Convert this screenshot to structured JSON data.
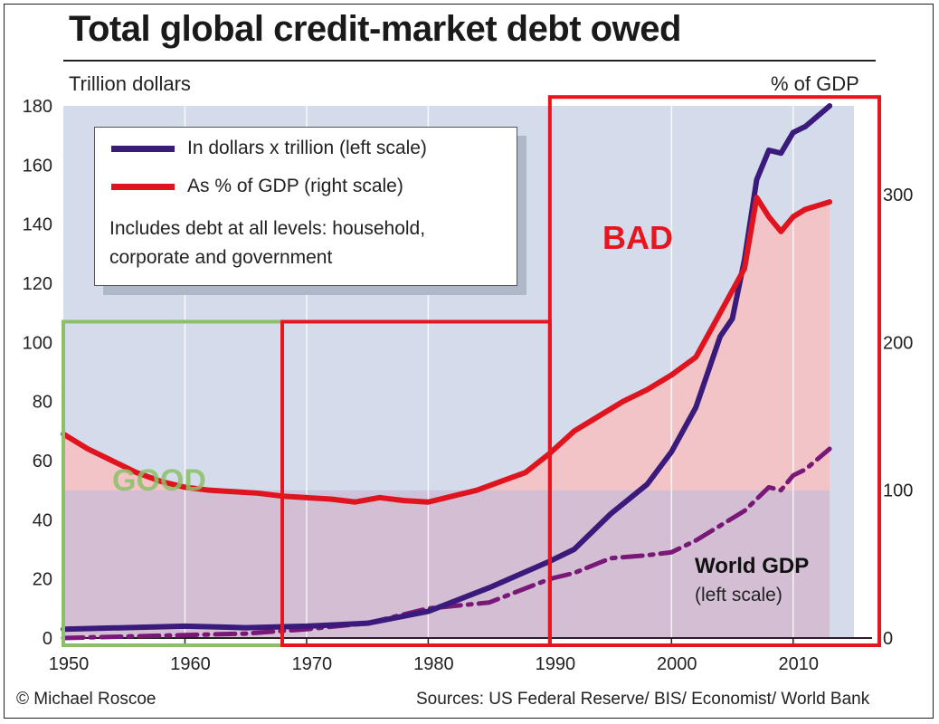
{
  "chart_data": {
    "type": "line",
    "title": "Total global credit-market debt owed",
    "ylabel": "Trillion dollars",
    "y2label": "% of GDP",
    "ylim": [
      0,
      180
    ],
    "y2lim": [
      0,
      360
    ],
    "xlim": [
      1950,
      2015
    ],
    "yticks": [
      "0",
      "20",
      "40",
      "60",
      "80",
      "100",
      "120",
      "140",
      "160",
      "180"
    ],
    "y2ticks": [
      "0",
      "100",
      "200",
      "300"
    ],
    "xticks": [
      "1950",
      "1960",
      "1970",
      "1980",
      "1990",
      "2000",
      "2010"
    ],
    "series": [
      {
        "name": "In dollars x trillion (left scale)",
        "axis": "left",
        "color": "#3a1a7a",
        "x": [
          1950,
          1955,
          1960,
          1965,
          1970,
          1975,
          1980,
          1985,
          1990,
          1992,
          1995,
          1998,
          2000,
          2002,
          2004,
          2005,
          2006,
          2007,
          2008,
          2009,
          2010,
          2011,
          2013
        ],
        "y": [
          3,
          3.5,
          4,
          3.5,
          4,
          5,
          9,
          17,
          26,
          30,
          42,
          52,
          63,
          78,
          102,
          108,
          128,
          155,
          165,
          164,
          171,
          173,
          180
        ]
      },
      {
        "name": "As % of GDP (right scale)",
        "axis": "right",
        "color": "#e0141e",
        "x": [
          1950,
          1952,
          1954,
          1956,
          1958,
          1960,
          1962,
          1964,
          1966,
          1968,
          1970,
          1972,
          1974,
          1976,
          1978,
          1980,
          1982,
          1984,
          1986,
          1988,
          1990,
          1992,
          1994,
          1996,
          1998,
          2000,
          2002,
          2004,
          2005,
          2006,
          2007,
          2008,
          2009,
          2010,
          2011,
          2013
        ],
        "y": [
          138,
          128,
          120,
          112,
          106,
          102,
          100,
          99,
          98,
          96,
          95,
          94,
          92,
          95,
          93,
          92,
          96,
          100,
          106,
          112,
          125,
          140,
          150,
          160,
          168,
          178,
          190,
          220,
          235,
          250,
          298,
          285,
          275,
          285,
          290,
          295
        ]
      },
      {
        "name": "World GDP (left scale)",
        "axis": "left",
        "color": "#7a1878",
        "dashed": true,
        "x": [
          1950,
          1960,
          1965,
          1970,
          1975,
          1980,
          1985,
          1990,
          1992,
          1995,
          1998,
          2000,
          2002,
          2004,
          2006,
          2008,
          2009,
          2010,
          2011,
          2013
        ],
        "y": [
          0,
          1,
          1.5,
          3,
          5,
          10,
          12,
          20,
          22,
          27,
          28,
          29,
          33,
          38,
          43,
          51,
          50,
          55,
          57,
          64
        ]
      }
    ],
    "legend": {
      "position": "top-left",
      "items": [
        "In dollars x trillion (left scale)",
        "As % of GDP (right scale)"
      ],
      "note": "Includes debt at all levels: household, corporate and government"
    },
    "annotations": {
      "world_gdp": "World GDP",
      "world_gdp_sub": "(left scale)",
      "good": "GOOD",
      "bad": "BAD"
    },
    "highlight_boxes": [
      {
        "label": "GOOD",
        "color": "#8cc068",
        "x_from": 1950,
        "x_to": 1968,
        "y_from": 0,
        "y_to": 107
      },
      {
        "label": "",
        "color": "#e8141e",
        "x_from": 1968,
        "x_to": 1990,
        "y_from": 0,
        "y_to": 107
      },
      {
        "label": "BAD",
        "color": "#e8141e",
        "x_from": 1990,
        "x_to": 2015,
        "y_from": 0,
        "y_to": 183
      }
    ]
  },
  "header": {
    "title": "Total global credit-market debt owed",
    "left_unit": "Trillion dollars",
    "right_unit": "% of GDP"
  },
  "footer": {
    "credit": "© Michael Roscoe",
    "sources": "Sources: US Federal Reserve/ BIS/ Economist/ World Bank"
  },
  "colors": {
    "plot_bg": "#d4dcec",
    "pct_fill": "#f2c4c8",
    "purple_fill": "#c8bcd8"
  }
}
